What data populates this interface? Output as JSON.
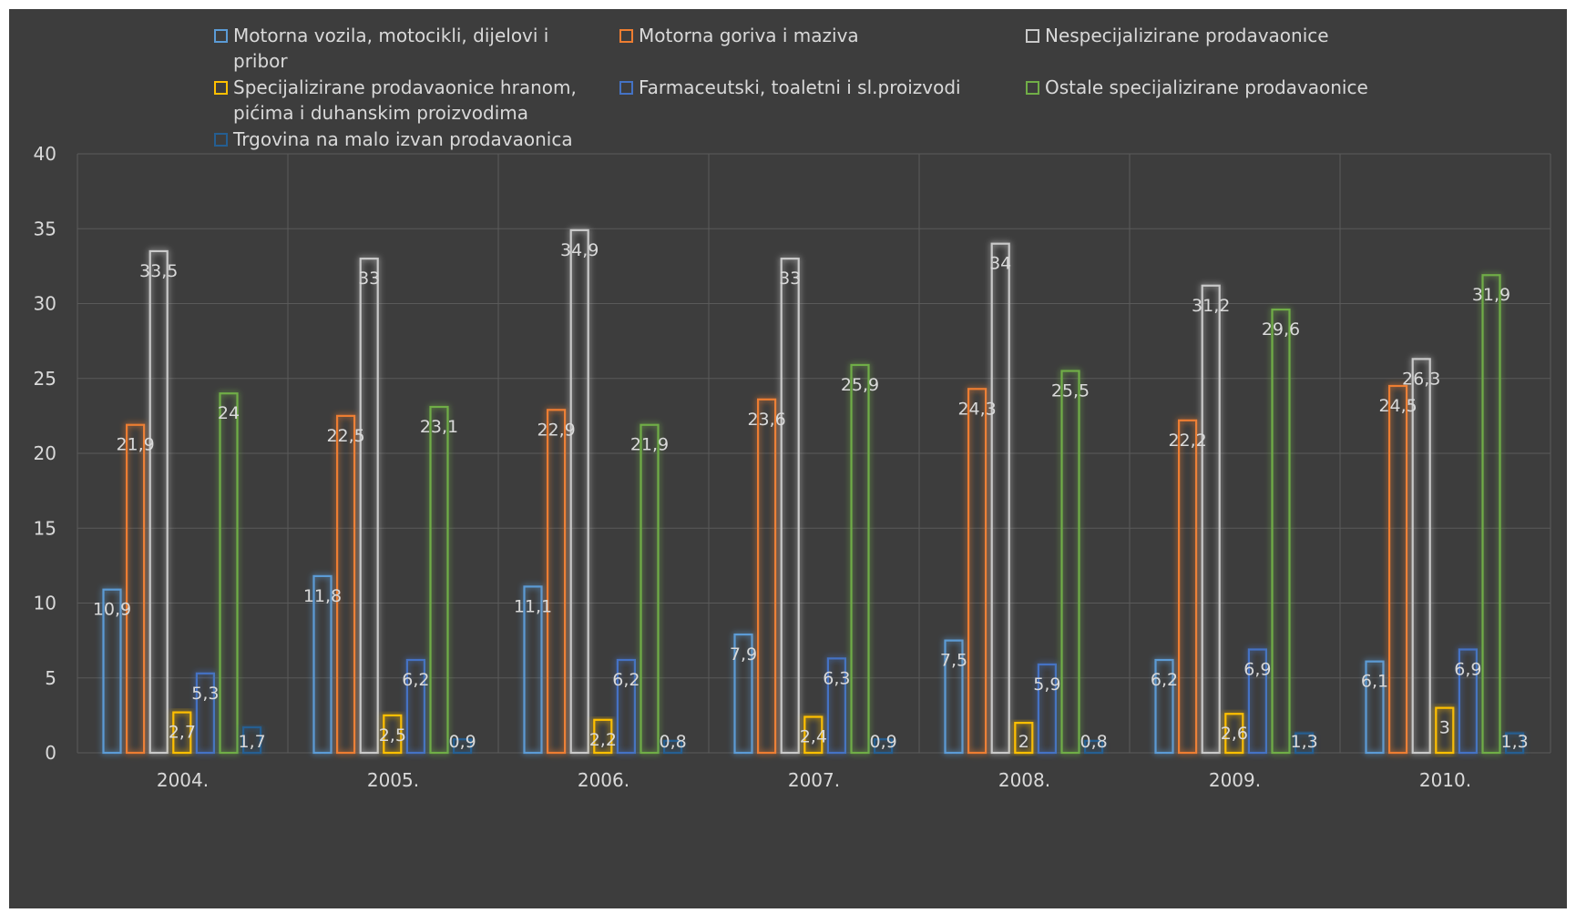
{
  "chart_data": {
    "type": "bar",
    "title": "",
    "xlabel": "",
    "ylabel": "",
    "ylim": [
      0,
      40
    ],
    "yticks": [
      "0",
      "5",
      "10",
      "15",
      "20",
      "25",
      "30",
      "35",
      "40"
    ],
    "grid": true,
    "legend_position": "top",
    "categories": [
      "2004.",
      "2005.",
      "2006.",
      "2007.",
      "2008.",
      "2009.",
      "2010."
    ],
    "series": [
      {
        "name": "Motorna vozila, motocikli, dijelovi i pribor",
        "color": "#5b9bd5",
        "values": [
          10.9,
          11.8,
          11.1,
          7.9,
          7.5,
          6.2,
          6.1
        ],
        "labels": [
          "10,9",
          "11,8",
          "11,1",
          "7,9",
          "7,5",
          "6,2",
          "6,1"
        ]
      },
      {
        "name": "Motorna goriva i maziva",
        "color": "#ed7d31",
        "values": [
          21.9,
          22.5,
          22.9,
          23.6,
          24.3,
          22.2,
          24.5
        ],
        "labels": [
          "21,9",
          "22,5",
          "22,9",
          "23,6",
          "24,3",
          "22,2",
          "24,5"
        ]
      },
      {
        "name": "Nespecijalizirane prodavaonice",
        "color": "#c9c9c9",
        "values": [
          33.5,
          33,
          34.9,
          33,
          34,
          31.2,
          26.3
        ],
        "labels": [
          "33,5",
          "33",
          "34,9",
          "33",
          "34",
          "31,2",
          "26,3"
        ]
      },
      {
        "name": "Specijalizirane prodavaonice hranom, pićima i duhanskim proizvodima",
        "color": "#ffc000",
        "values": [
          2.7,
          2.5,
          2.2,
          2.4,
          2,
          2.6,
          3
        ],
        "labels": [
          "2,7",
          "2,5",
          "2,2",
          "2,4",
          "2",
          "2,6",
          "3"
        ]
      },
      {
        "name": "Farmaceutski, toaletni i sl.proizvodi",
        "color": "#4472c4",
        "values": [
          5.3,
          6.2,
          6.2,
          6.3,
          5.9,
          6.9,
          6.9
        ],
        "labels": [
          "5,3",
          "6,2",
          "6,2",
          "6,3",
          "5,9",
          "6,9",
          "6,9"
        ]
      },
      {
        "name": "Ostale specijalizirane prodavaonice",
        "color": "#70ad47",
        "values": [
          24,
          23.1,
          21.9,
          25.9,
          25.5,
          29.6,
          31.9
        ],
        "labels": [
          "24",
          "23,1",
          "21,9",
          "25,9",
          "25,5",
          "29,6",
          "31,9"
        ]
      },
      {
        "name": "Trgovina na malo izvan prodavaonica",
        "color": "#255e91",
        "values": [
          1.7,
          0.9,
          0.8,
          0.9,
          0.8,
          1.3,
          1.3
        ],
        "labels": [
          "1,7",
          "0,9",
          "0,8",
          "0,9",
          "0,8",
          "1,3",
          "1,3"
        ]
      }
    ]
  }
}
